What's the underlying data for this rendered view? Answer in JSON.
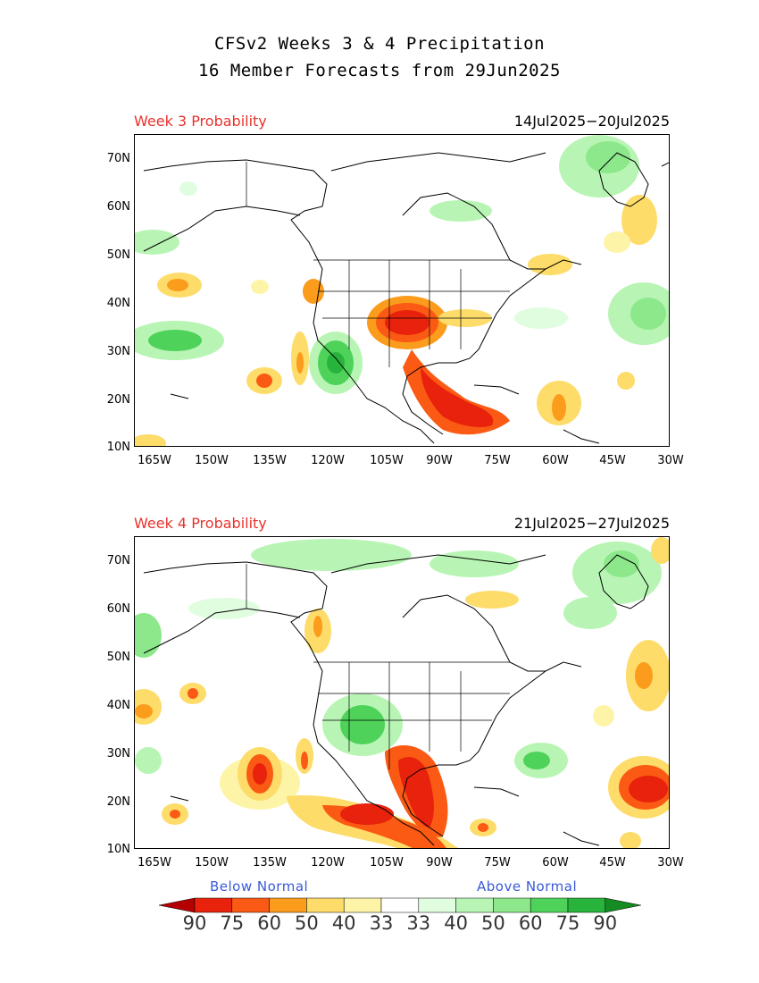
{
  "title": {
    "line1": "CFSv2 Weeks 3 & 4 Precipitation",
    "line2": "16 Member Forecasts from 29Jun2025"
  },
  "panels": [
    {
      "label": "Week 3 Probability",
      "dates": "14Jul2025−20Jul2025"
    },
    {
      "label": "Week 4 Probability",
      "dates": "21Jul2025−27Jul2025"
    }
  ],
  "axes": {
    "lat_labels": [
      "70N",
      "60N",
      "50N",
      "40N",
      "30N",
      "20N",
      "10N"
    ],
    "lon_labels": [
      "165W",
      "150W",
      "135W",
      "120W",
      "105W",
      "90W",
      "75W",
      "60W",
      "45W",
      "30W"
    ]
  },
  "legend": {
    "below_label": "Below Normal",
    "above_label": "Above Normal",
    "values": [
      "90",
      "75",
      "60",
      "50",
      "40",
      "33",
      "33",
      "40",
      "50",
      "60",
      "75",
      "90"
    ],
    "colors": [
      "#b40000",
      "#e8220c",
      "#fa5a14",
      "#fb9c1c",
      "#fddc6a",
      "#fef4a8",
      "#ffffff",
      "#e0fde0",
      "#b8f5b4",
      "#8ce88a",
      "#4ed25a",
      "#28b43c",
      "#148c22"
    ]
  }
}
